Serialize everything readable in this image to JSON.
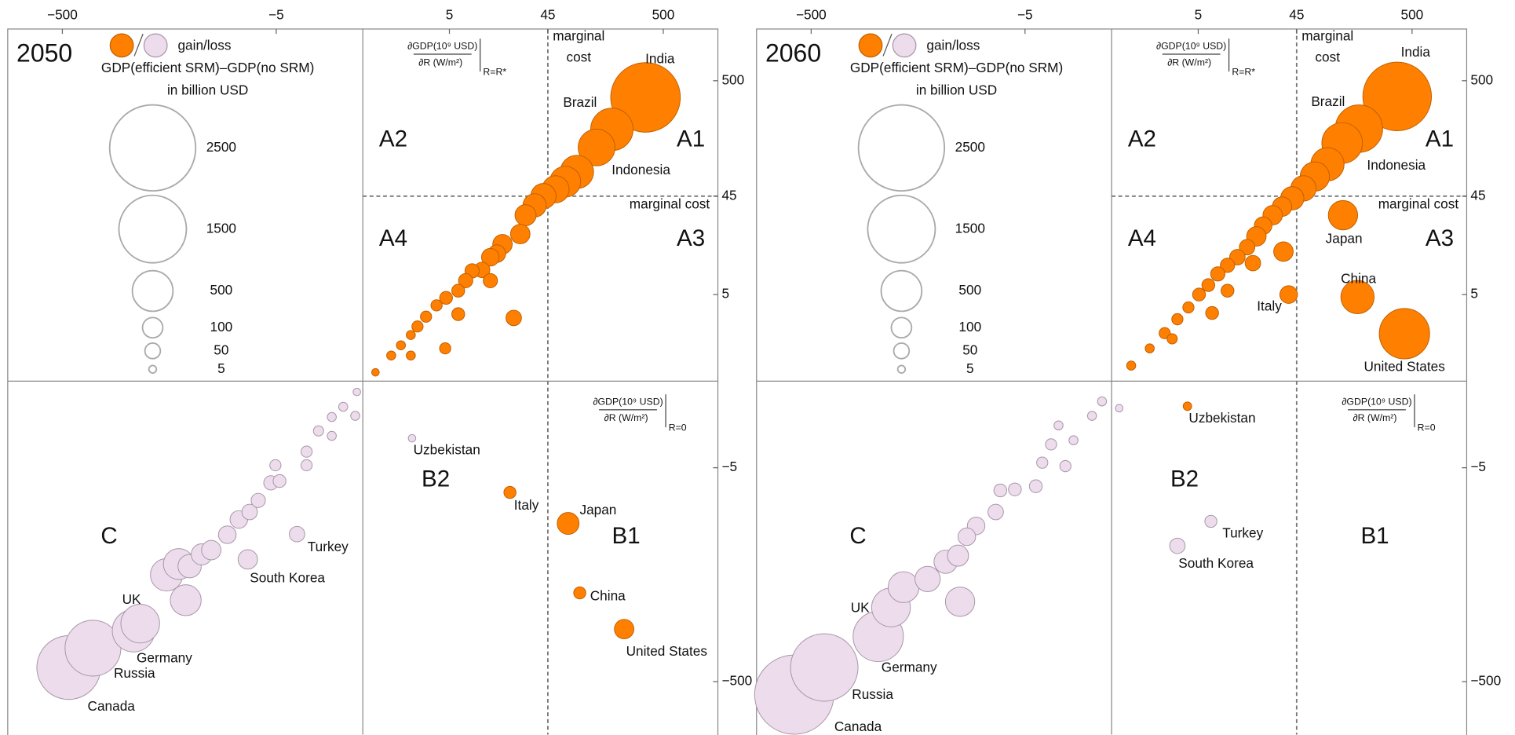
{
  "chart_data": [
    {
      "type": "bubble",
      "title": "2050",
      "xscale": "symlog",
      "yscale": "symlog",
      "linthresh": 1,
      "xlim": [
        -1550,
        1550
      ],
      "ylim": [
        -1500,
        1460
      ],
      "xticks": [
        {
          "value": -500,
          "label": "−500"
        },
        {
          "value": -5,
          "label": "−5"
        },
        5,
        45,
        500
      ],
      "yticks": [
        500,
        45,
        5,
        {
          "value": -5,
          "label": "−5"
        },
        {
          "value": -500,
          "label": "−500"
        }
      ],
      "reference_lines": {
        "x": 45,
        "y": 45
      },
      "legend_label": "gain/loss",
      "size_legend": {
        "title": "GDP(efficient SRM)–GDP(no SRM)",
        "subtitle": "in billion USD",
        "values": [
          2500,
          1500,
          500,
          100,
          50,
          5
        ]
      },
      "quadrant_labels": [
        "A1",
        "A2",
        "A3",
        "A4",
        "B1",
        "B2",
        "C"
      ],
      "marginal_cost_label": [
        "marginal",
        "cost"
      ],
      "marginal_cost_line_label": "marginal cost",
      "derivative_top": {
        "numerator": "∂GDP(10⁹ USD)",
        "denominator": "∂R (W/m²)",
        "subscript": "R=R*"
      },
      "derivative_bottom": {
        "numerator": "∂GDP(10⁹ USD)",
        "denominator": "∂R (W/m²)",
        "subscript": "R=0"
      },
      "series": [
        {
          "color": "#ff8000",
          "stroke": "#c05f00",
          "x": [
            346,
            172,
            125,
            20,
            69,
            88,
            222,
            83,
            65,
            53,
            41,
            34,
            28,
            25,
            17,
            15,
            13,
            10.8,
            8.6,
            7.4,
            13,
            6.2,
            4.6,
            3.6,
            2.7,
            2.1,
            1.7,
            1.2,
            0.8,
            0.3,
            21.7,
            6.2,
            4.5,
            1.7
          ],
          "y": [
            354,
            182,
            125,
            -9,
            -18,
            -79,
            -168,
            75,
            61,
            52,
            45,
            37,
            30,
            20,
            16,
            13,
            12,
            9,
            8.8,
            7,
            7,
            5.5,
            4.6,
            3.8,
            2.8,
            2.1,
            1.6,
            1.1,
            0.7,
            0.2,
            2.7,
            3,
            0.97,
            0.7
          ],
          "sizes": [
            1600,
            550,
            400,
            25,
            120,
            25,
            90,
            320,
            270,
            200,
            170,
            140,
            110,
            90,
            90,
            70,
            70,
            50,
            40,
            40,
            40,
            30,
            30,
            20,
            20,
            20,
            10,
            10,
            10,
            5,
            50,
            30,
            20,
            10
          ],
          "labels": [
            "India",
            "Brazil",
            "Indonesia",
            "Italy",
            "Japan",
            "China",
            "United States",
            null,
            null,
            null,
            null,
            null,
            null,
            null,
            null,
            null,
            null,
            null,
            null,
            null,
            null,
            null,
            null,
            null,
            null,
            null,
            null,
            null,
            null,
            null,
            null,
            null,
            null,
            null
          ]
        },
        {
          "color": "#ecdcec",
          "stroke": "#a896a8",
          "x": [
            -438,
            -265,
            -114,
            -99,
            -2.9,
            -9.8,
            1.77,
            -38,
            -57,
            -44,
            -35,
            -27,
            -22,
            -15.5,
            -12,
            -9.4,
            -7.7,
            -5.7,
            -4.6,
            -5.1,
            -2.2,
            -2.2,
            -1.5,
            -0.9,
            -0.9,
            -0.17,
            -0.5,
            -0.13
          ],
          "y": [
            -374,
            -250,
            -174,
            -150,
            -22.7,
            -39,
            -2.26,
            -92,
            -54,
            -43,
            -45,
            -35,
            -32,
            -23,
            -16.5,
            -14,
            -10.8,
            -7.2,
            -6.9,
            -4.7,
            -3.3,
            -4.7,
            -1.8,
            -2.1,
            -1.1,
            -1.05,
            -0.7,
            -0.25
          ],
          "sizes": [
            1330,
            1000,
            550,
            450,
            50,
            90,
            5,
            270,
            300,
            270,
            140,
            110,
            90,
            70,
            70,
            50,
            40,
            40,
            30,
            20,
            20,
            20,
            15,
            10,
            10,
            10,
            10,
            5
          ],
          "labels": [
            "Canada",
            "Russia",
            "Germany",
            "UK",
            "Turkey",
            "South Korea",
            "Uzbekistan",
            null,
            null,
            null,
            null,
            null,
            null,
            null,
            null,
            null,
            null,
            null,
            null,
            null,
            null,
            null,
            null,
            null,
            null,
            null,
            null,
            null
          ]
        }
      ]
    },
    {
      "type": "bubble",
      "title": "2060",
      "xscale": "symlog",
      "yscale": "symlog",
      "linthresh": 1,
      "xlim": [
        -1550,
        1550
      ],
      "ylim": [
        -1500,
        1460
      ],
      "xticks": [
        {
          "value": -500,
          "label": "−500"
        },
        {
          "value": -5,
          "label": "−5"
        },
        5,
        45,
        500
      ],
      "yticks": [
        500,
        45,
        5,
        {
          "value": -5,
          "label": "−5"
        },
        {
          "value": -500,
          "label": "−500"
        }
      ],
      "reference_lines": {
        "x": 45,
        "y": 45
      },
      "legend_label": "gain/loss",
      "size_legend": {
        "title": "GDP(efficient SRM)–GDP(no SRM)",
        "subtitle": "in billion USD",
        "values": [
          2500,
          1500,
          500,
          100,
          50,
          5
        ]
      },
      "quadrant_labels": [
        "A1",
        "A2",
        "A3",
        "A4",
        "B1",
        "B2",
        "C"
      ],
      "marginal_cost_label": [
        "marginal",
        "cost"
      ],
      "marginal_cost_line_label": "marginal cost",
      "derivative_top": {
        "numerator": "∂GDP(10⁹ USD)",
        "denominator": "∂R (W/m²)",
        "subscript": "R=R*"
      },
      "derivative_bottom": {
        "numerator": "∂GDP(10⁹ USD)",
        "denominator": "∂R (W/m²)",
        "subscript": "R=0"
      },
      "series": [
        {
          "color": "#ff8000",
          "stroke": "#c05f00",
          "x": [
            367,
            166,
            117,
            38,
            119,
            161,
            427,
            3.8,
            86,
            66,
            52,
            41,
            33,
            27,
            22,
            19,
            15.5,
            12.5,
            10,
            8,
            6.4,
            5.1,
            3.9,
            2.9,
            2,
            1.2,
            0.5,
            34,
            17.6,
            10,
            7,
            2.5
          ],
          "y": [
            361,
            185,
            137,
            5,
            30,
            4.7,
            1.67,
            -0.68,
            88,
            68,
            53,
            43,
            36,
            30,
            24,
            19,
            15,
            12,
            10,
            8.2,
            6.3,
            5,
            3.6,
            2.6,
            1.7,
            0.97,
            0.38,
            13.6,
            10.5,
            5.5,
            3.1,
            1.4
          ],
          "sizes": [
            1550,
            700,
            500,
            70,
            240,
            320,
            800,
            8,
            320,
            240,
            170,
            140,
            90,
            90,
            70,
            90,
            50,
            50,
            40,
            40,
            30,
            30,
            20,
            20,
            20,
            10,
            10,
            90,
            50,
            30,
            30,
            15
          ],
          "labels": [
            "India",
            "Brazil",
            "Indonesia",
            "Italy",
            "Japan",
            "China",
            "United States",
            "Uzbekistan",
            null,
            null,
            null,
            null,
            null,
            null,
            null,
            null,
            null,
            null,
            null,
            null,
            null,
            null,
            null,
            null,
            null,
            null,
            null,
            null,
            null,
            null,
            null,
            null
          ]
        },
        {
          "color": "#ecdcec",
          "stroke": "#a896a8",
          "x": [
            -710,
            -381,
            -124,
            -95,
            6.8,
            2.9,
            -73,
            -44,
            -22,
            -30,
            -23,
            -15.5,
            -19,
            -10,
            -9,
            -6.4,
            -3.8,
            -3.2,
            -2.5,
            -1.6,
            -1.2,
            -2,
            -0.5,
            -0.22,
            0.17
          ],
          "y": [
            -655,
            -373,
            -196,
            -107,
            -17.2,
            -29.2,
            -70,
            -59,
            -95,
            -41,
            -36,
            -19,
            -24,
            -14,
            -8.6,
            -8.4,
            -7.8,
            -4.4,
            -2.7,
            -4.8,
            -2.4,
            -1.5,
            -1.05,
            -0.52,
            -0.75
          ],
          "sizes": [
            2100,
            1500,
            800,
            450,
            25,
            50,
            270,
            170,
            240,
            140,
            110,
            70,
            70,
            50,
            30,
            30,
            30,
            20,
            20,
            20,
            10,
            10,
            10,
            10,
            5
          ],
          "labels": [
            "Canada",
            "Russia",
            "Germany",
            "UK",
            "Turkey",
            "South Korea",
            null,
            null,
            null,
            null,
            null,
            null,
            null,
            null,
            null,
            null,
            null,
            null,
            null,
            null,
            null,
            null,
            null,
            null,
            null
          ]
        }
      ]
    }
  ]
}
